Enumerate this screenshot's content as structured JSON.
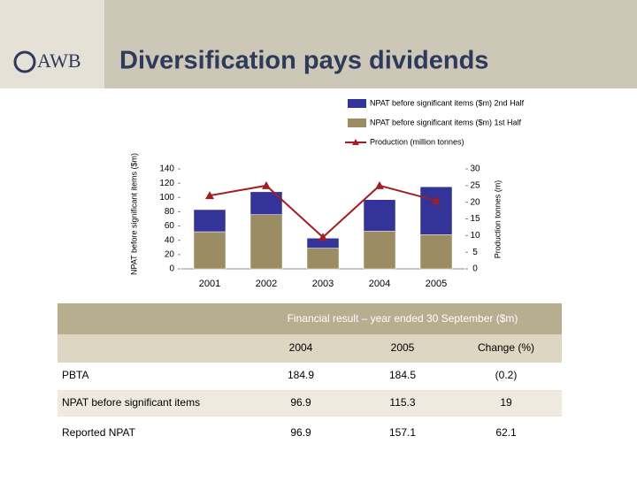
{
  "header": {
    "logo": "AWB",
    "title": "Diversification pays dividends"
  },
  "chart_data": {
    "type": "bar-line",
    "categories": [
      "2001",
      "2002",
      "2003",
      "2004",
      "2005"
    ],
    "y_label": "NPAT before significant items ($m)",
    "y2_label": "Production tonnes (m)",
    "ylim": [
      0,
      140
    ],
    "yticks": [
      0,
      20,
      40,
      60,
      80,
      100,
      120,
      140
    ],
    "y2lim": [
      0,
      30
    ],
    "y2ticks": [
      0,
      5,
      10,
      15,
      20,
      25,
      30
    ],
    "stacked": true,
    "series": [
      {
        "name": "NPAT before significant items ($m) 2nd Half",
        "type": "bar",
        "color": "#33339a",
        "values": [
          31,
          32,
          14,
          44,
          67
        ]
      },
      {
        "name": "NPAT before significant items ($m) 1st Half",
        "type": "bar",
        "color": "#9c8c64",
        "values": [
          52,
          76,
          29,
          53,
          48
        ]
      },
      {
        "name": "Production (million tonnes)",
        "type": "line",
        "axis": "y2",
        "color": "#a11e22",
        "values": [
          22,
          25,
          9.5,
          25,
          20.5
        ]
      }
    ]
  },
  "table": {
    "title": "Financial result – year ended 30 September ($m)",
    "columns": [
      "2004",
      "2005",
      "Change (%)"
    ],
    "rows": [
      [
        "PBTA",
        "184.9",
        "184.5",
        "(0.2)"
      ],
      [
        "NPAT before significant items",
        "96.9",
        "115.3",
        "19"
      ],
      [
        "Reported NPAT",
        "96.9",
        "157.1",
        "62.1"
      ]
    ]
  }
}
